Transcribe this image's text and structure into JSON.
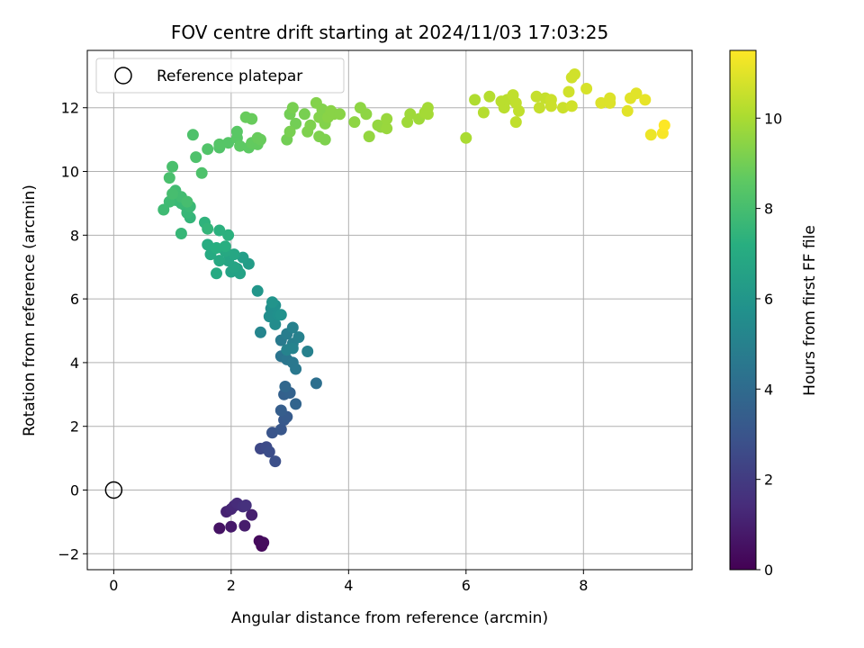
{
  "chart_data": {
    "type": "scatter",
    "title": "FOV centre drift starting at 2024/11/03 17:03:25",
    "xlabel": "Angular distance from reference (arcmin)",
    "ylabel": "Rotation from reference (arcmin)",
    "xlim": [
      -0.45,
      9.85
    ],
    "ylim": [
      -2.5,
      13.8
    ],
    "xticks": [
      0,
      2,
      4,
      6,
      8
    ],
    "yticks": [
      -2,
      0,
      2,
      4,
      6,
      8,
      10,
      12
    ],
    "grid": true,
    "legend": {
      "placement": "top-left",
      "entries": [
        "Reference platepar"
      ]
    },
    "colorbar": {
      "label": "Hours from first FF file",
      "range": [
        0,
        11.5
      ],
      "ticks": [
        0,
        2,
        4,
        6,
        8,
        10
      ],
      "colormap": "viridis"
    },
    "reference": {
      "x": 0,
      "y": 0,
      "label": "Reference platepar"
    },
    "points": [
      [
        2.52,
        -1.75,
        0.25
      ],
      [
        2.48,
        -1.6,
        0.3
      ],
      [
        2.55,
        -1.65,
        0.35
      ],
      [
        1.8,
        -1.2,
        0.6
      ],
      [
        2.0,
        -1.15,
        0.8
      ],
      [
        2.23,
        -1.12,
        0.9
      ],
      [
        2.35,
        -0.78,
        1.0
      ],
      [
        1.92,
        -0.68,
        1.1
      ],
      [
        2.0,
        -0.6,
        1.2
      ],
      [
        2.05,
        -0.5,
        1.3
      ],
      [
        2.1,
        -0.42,
        1.4
      ],
      [
        2.2,
        -0.52,
        1.5
      ],
      [
        2.25,
        -0.48,
        1.6
      ],
      [
        2.5,
        1.3,
        2.5
      ],
      [
        2.6,
        1.35,
        2.6
      ],
      [
        2.65,
        1.2,
        2.7
      ],
      [
        2.75,
        0.9,
        2.8
      ],
      [
        2.7,
        1.8,
        3.0
      ],
      [
        2.85,
        1.9,
        3.1
      ],
      [
        2.9,
        2.2,
        3.2
      ],
      [
        2.95,
        2.3,
        3.3
      ],
      [
        2.85,
        2.5,
        3.4
      ],
      [
        2.9,
        3.0,
        3.5
      ],
      [
        3.0,
        3.05,
        3.6
      ],
      [
        3.1,
        2.7,
        3.7
      ],
      [
        2.92,
        3.25,
        3.8
      ],
      [
        3.45,
        3.35,
        4.2
      ],
      [
        2.85,
        4.2,
        4.4
      ],
      [
        2.95,
        4.1,
        4.5
      ],
      [
        3.05,
        4.0,
        4.6
      ],
      [
        3.1,
        3.8,
        4.6
      ],
      [
        2.85,
        4.7,
        4.7
      ],
      [
        2.95,
        4.9,
        4.8
      ],
      [
        3.05,
        4.6,
        4.9
      ],
      [
        3.15,
        4.8,
        5.0
      ],
      [
        3.05,
        5.1,
        5.0
      ],
      [
        2.95,
        4.4,
        5.1
      ],
      [
        3.05,
        4.45,
        5.1
      ],
      [
        2.75,
        5.2,
        5.5
      ],
      [
        2.65,
        5.45,
        5.6
      ],
      [
        2.68,
        5.7,
        5.6
      ],
      [
        2.8,
        5.5,
        5.7
      ],
      [
        2.75,
        5.8,
        5.7
      ],
      [
        2.85,
        5.5,
        5.8
      ],
      [
        2.7,
        5.9,
        5.9
      ],
      [
        2.45,
        6.25,
        6.0
      ],
      [
        3.3,
        4.35,
        5.0
      ],
      [
        2.5,
        4.95,
        5.2
      ],
      [
        2.3,
        7.1,
        6.3
      ],
      [
        2.2,
        7.3,
        6.4
      ],
      [
        2.1,
        6.95,
        6.5
      ],
      [
        2.0,
        6.85,
        6.6
      ],
      [
        2.15,
        6.8,
        6.6
      ],
      [
        2.05,
        7.0,
        6.7
      ],
      [
        1.95,
        7.2,
        6.7
      ],
      [
        2.05,
        7.4,
        6.8
      ],
      [
        1.9,
        7.5,
        6.9
      ],
      [
        1.8,
        7.2,
        6.9
      ],
      [
        1.75,
        6.8,
        7.0
      ],
      [
        1.65,
        7.4,
        7.0
      ],
      [
        1.6,
        7.7,
        7.1
      ],
      [
        1.75,
        7.6,
        7.2
      ],
      [
        1.9,
        7.65,
        7.2
      ],
      [
        1.8,
        8.15,
        7.3
      ],
      [
        1.95,
        8.0,
        7.3
      ],
      [
        1.55,
        8.4,
        7.4
      ],
      [
        1.6,
        8.2,
        7.5
      ],
      [
        1.3,
        8.55,
        7.5
      ],
      [
        1.2,
        8.95,
        7.6
      ],
      [
        1.25,
        8.7,
        7.6
      ],
      [
        1.15,
        9.0,
        7.7
      ],
      [
        1.3,
        8.9,
        7.7
      ],
      [
        1.05,
        9.1,
        7.7
      ],
      [
        0.95,
        9.05,
        7.8
      ],
      [
        0.85,
        8.8,
        7.8
      ],
      [
        1.05,
        9.4,
        7.9
      ],
      [
        1.15,
        9.2,
        7.9
      ],
      [
        1.0,
        9.3,
        8.0
      ],
      [
        1.25,
        9.05,
        8.0
      ],
      [
        0.95,
        9.8,
        8.1
      ],
      [
        1.0,
        10.15,
        8.1
      ],
      [
        1.15,
        8.05,
        7.6
      ],
      [
        1.4,
        10.45,
        8.2
      ],
      [
        1.5,
        9.95,
        8.2
      ],
      [
        1.6,
        10.7,
        8.3
      ],
      [
        1.8,
        10.75,
        8.3
      ],
      [
        1.8,
        10.85,
        8.4
      ],
      [
        1.95,
        10.9,
        8.4
      ],
      [
        2.1,
        11.05,
        8.5
      ],
      [
        2.1,
        11.25,
        8.5
      ],
      [
        2.15,
        10.8,
        8.6
      ],
      [
        2.3,
        10.75,
        8.6
      ],
      [
        2.35,
        10.9,
        8.7
      ],
      [
        2.45,
        10.85,
        8.7
      ],
      [
        2.45,
        11.05,
        8.8
      ],
      [
        2.5,
        11.0,
        8.8
      ],
      [
        2.35,
        11.65,
        8.8
      ],
      [
        2.25,
        11.7,
        8.8
      ],
      [
        1.35,
        11.15,
        8.2
      ],
      [
        3.0,
        11.8,
        9.0
      ],
      [
        3.1,
        11.5,
        9.0
      ],
      [
        2.95,
        11.0,
        9.0
      ],
      [
        3.0,
        11.25,
        9.1
      ],
      [
        3.05,
        12.0,
        9.1
      ],
      [
        3.25,
        11.8,
        9.1
      ],
      [
        3.35,
        11.45,
        9.2
      ],
      [
        3.3,
        11.25,
        9.2
      ],
      [
        3.5,
        11.1,
        9.2
      ],
      [
        3.6,
        11.0,
        9.2
      ],
      [
        3.6,
        11.5,
        9.3
      ],
      [
        3.5,
        11.7,
        9.3
      ],
      [
        3.45,
        12.15,
        9.3
      ],
      [
        3.55,
        11.95,
        9.3
      ],
      [
        3.75,
        11.8,
        9.4
      ],
      [
        3.65,
        11.7,
        9.4
      ],
      [
        3.7,
        11.9,
        9.4
      ],
      [
        3.85,
        11.8,
        9.4
      ],
      [
        4.1,
        11.55,
        9.5
      ],
      [
        4.2,
        12.0,
        9.5
      ],
      [
        4.3,
        11.8,
        9.5
      ],
      [
        4.35,
        11.1,
        9.6
      ],
      [
        4.5,
        11.45,
        9.6
      ],
      [
        4.55,
        11.4,
        9.6
      ],
      [
        4.65,
        11.35,
        9.7
      ],
      [
        4.65,
        11.65,
        9.7
      ],
      [
        5.0,
        11.55,
        9.8
      ],
      [
        5.05,
        11.8,
        9.8
      ],
      [
        5.2,
        11.65,
        9.8
      ],
      [
        5.3,
        11.85,
        9.9
      ],
      [
        5.35,
        12.0,
        9.9
      ],
      [
        5.35,
        11.8,
        9.9
      ],
      [
        6.0,
        11.05,
        10.0
      ],
      [
        6.15,
        12.25,
        10.1
      ],
      [
        6.3,
        11.85,
        10.2
      ],
      [
        6.4,
        12.35,
        10.2
      ],
      [
        6.6,
        12.2,
        10.3
      ],
      [
        6.65,
        12.0,
        10.3
      ],
      [
        6.7,
        12.25,
        10.3
      ],
      [
        6.8,
        12.4,
        10.4
      ],
      [
        6.85,
        12.15,
        10.4
      ],
      [
        6.85,
        11.55,
        10.4
      ],
      [
        6.9,
        11.9,
        10.4
      ],
      [
        7.2,
        12.35,
        10.5
      ],
      [
        7.25,
        12.0,
        10.5
      ],
      [
        7.35,
        12.3,
        10.5
      ],
      [
        7.45,
        12.25,
        10.6
      ],
      [
        7.45,
        12.05,
        10.6
      ],
      [
        7.65,
        12.0,
        10.6
      ],
      [
        7.75,
        12.5,
        10.7
      ],
      [
        7.8,
        12.05,
        10.7
      ],
      [
        7.8,
        12.95,
        10.7
      ],
      [
        7.85,
        13.05,
        10.7
      ],
      [
        8.05,
        12.6,
        10.8
      ],
      [
        8.3,
        12.15,
        10.9
      ],
      [
        8.45,
        12.15,
        10.9
      ],
      [
        8.45,
        12.3,
        10.9
      ],
      [
        8.75,
        11.9,
        11.0
      ],
      [
        8.8,
        12.3,
        11.0
      ],
      [
        8.9,
        12.45,
        11.0
      ],
      [
        9.05,
        12.25,
        11.1
      ],
      [
        9.15,
        11.15,
        11.2
      ],
      [
        9.35,
        11.2,
        11.4
      ],
      [
        9.38,
        11.45,
        11.5
      ]
    ]
  }
}
